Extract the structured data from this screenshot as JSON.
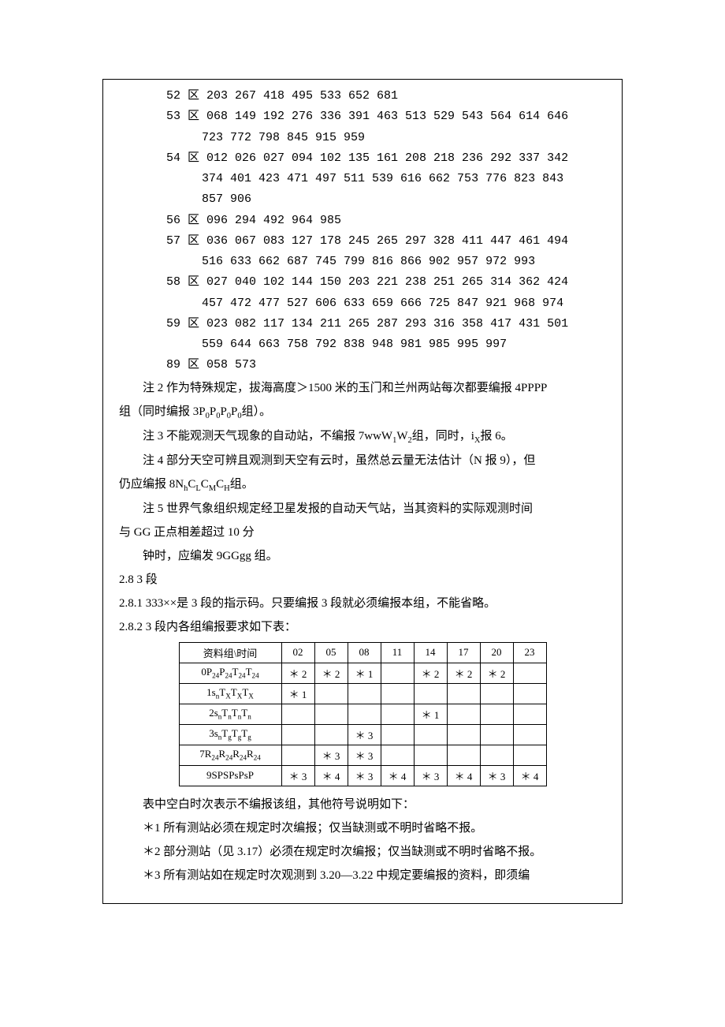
{
  "regions": [
    {
      "name": "52 区",
      "codes": [
        "203",
        "267",
        "418",
        "495",
        "533",
        "652",
        "681"
      ]
    },
    {
      "name": "53 区",
      "codes": [
        "068",
        "149",
        "192",
        "276",
        "336",
        "391",
        "463",
        "513",
        "529",
        "543",
        "564",
        "614",
        "646",
        "723",
        "772",
        "798",
        "845",
        "915",
        "959"
      ]
    },
    {
      "name": "54 区",
      "codes": [
        "012",
        "026",
        "027",
        "094",
        "102",
        "135",
        "161",
        "208",
        "218",
        "236",
        "292",
        "337",
        "342",
        "374",
        "401",
        "423",
        "471",
        "497",
        "511",
        "539",
        "616",
        "662",
        "753",
        "776",
        "823",
        "843",
        "857",
        "906"
      ]
    },
    {
      "name": "56 区",
      "codes": [
        "096",
        "294",
        "492",
        "964",
        "985"
      ]
    },
    {
      "name": "57 区",
      "codes": [
        "036",
        "067",
        "083",
        "127",
        "178",
        "245",
        "265",
        "297",
        "328",
        "411",
        "447",
        "461",
        "494",
        "516",
        "633",
        "662",
        "687",
        "745",
        "799",
        "816",
        "866",
        "902",
        "957",
        "972",
        "993"
      ]
    },
    {
      "name": "58 区",
      "codes": [
        "027",
        "040",
        "102",
        "144",
        "150",
        "203",
        "221",
        "238",
        "251",
        "265",
        "314",
        "362",
        "424",
        "457",
        "472",
        "477",
        "527",
        "606",
        "633",
        "659",
        "666",
        "725",
        "847",
        "921",
        "968",
        "974"
      ]
    },
    {
      "name": "59 区",
      "codes": [
        "023",
        "082",
        "117",
        "134",
        "211",
        "265",
        "287",
        "293",
        "316",
        "358",
        "417",
        "431",
        "501",
        "559",
        "644",
        "663",
        "758",
        "792",
        "838",
        "948",
        "981",
        "985",
        "995",
        "997"
      ]
    },
    {
      "name": "89 区",
      "codes": [
        "058",
        "573"
      ]
    }
  ],
  "notes": {
    "n2_a": "注 2 作为特殊规定，拔海高度＞1500 米的玉门和兰州两站每次都要编报 4PPPP",
    "n2_b": "组（同时编报 3P",
    "n2_c": "组）。",
    "n3_a": "注 3 不能观测天气现象的自动站，不编报 7wwW",
    "n3_b": "组，同时，i",
    "n3_c": "报 6。",
    "n4_a": "注 4 部分天空可辨且观测到天空有云时，虽然总云量无法估计（N 报 9），但",
    "n4_b": "仍应编报 8N",
    "n4_c": "组。",
    "n5_a": "注 5 世界气象组织规定经卫星发报的自动天气站，当其资料的实际观测时间",
    "n5_b": "与 GG 正点相差超过 10 分",
    "n5_c": "钟时，应编发 9GGgg 组。"
  },
  "sec": {
    "s28": "2.8 3 段",
    "s281": "2.8.1 333××是 3 段的指示码。只要编报 3 段就必须编报本组，不能省略。",
    "s282": "2.8.2 3 段内各组编报要求如下表："
  },
  "table": {
    "header": [
      "资料组\\时间",
      "02",
      "05",
      "08",
      "11",
      "14",
      "17",
      "20",
      "23"
    ],
    "rows": [
      {
        "label": "0P₂₄P₂₄T₂₄T₂₄",
        "cells": [
          "＊ 2",
          "＊ 2",
          "＊ 1",
          "",
          "＊ 2",
          "＊ 2",
          "＊ 2",
          ""
        ]
      },
      {
        "label": "1sₙTₓTₓTₓ",
        "cells": [
          "＊ 1",
          "",
          "",
          "",
          "",
          "",
          "",
          ""
        ]
      },
      {
        "label": "2sₙTₙTₙTₙ",
        "cells": [
          "",
          "",
          "",
          "",
          "＊ 1",
          "",
          "",
          ""
        ]
      },
      {
        "label": "3sₙTgTgTg",
        "cells": [
          "",
          "",
          "＊ 3",
          "",
          "",
          "",
          "",
          ""
        ]
      },
      {
        "label": "7R₂₄R₂₄R₂₄R₂₄",
        "cells": [
          "",
          "＊ 3",
          "＊ 3",
          "",
          "",
          "",
          "",
          ""
        ]
      },
      {
        "label": "9SPSPsPsP",
        "cells": [
          "＊ 3",
          "＊ 4",
          "＊ 3",
          "＊ 4",
          "＊ 3",
          "＊ 4",
          "＊ 3",
          "＊ 4"
        ]
      }
    ]
  },
  "footer": {
    "f0": "表中空白时次表示不编报该组，其他符号说明如下：",
    "f1": "＊1 所有测站必须在规定时次编报；仅当缺测或不明时省略不报。",
    "f2": "＊2 部分测站（见 3.17）必须在规定时次编报；仅当缺测或不明时省略不报。",
    "f3": "＊3 所有测站如在规定时次观测到 3.20—3.22 中规定要编报的资料，即须编"
  },
  "sub": {
    "p0": "0",
    "w1": "1",
    "w2": "2",
    "ix": "X",
    "nh": "h",
    "cl": "L",
    "cm": "M",
    "ch": "H",
    "n24": "24",
    "sn": "n",
    "tx": "X",
    "tn": "n",
    "tg": "g",
    "r24": "24"
  }
}
